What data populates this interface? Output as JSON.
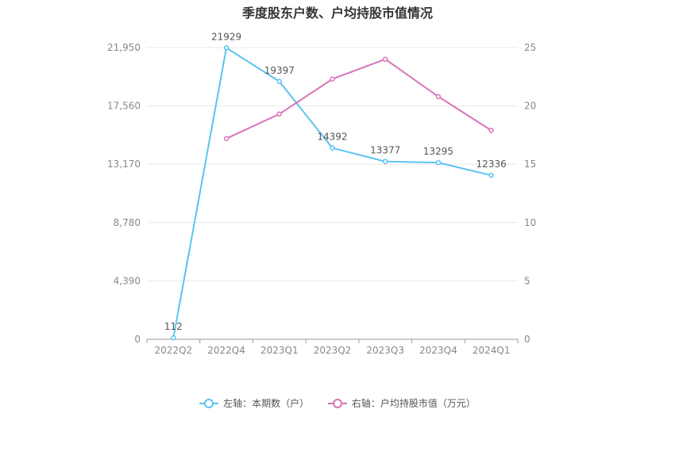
{
  "title": "季度股东户数、户均持股市值情况",
  "colors": {
    "holders": "#5bc3f0",
    "avg_value": "#d974b8",
    "grid": "#e8e8e8",
    "axis": "#999999"
  },
  "chart_data": {
    "type": "line",
    "categories": [
      "2022Q2",
      "2022Q4",
      "2023Q1",
      "2023Q2",
      "2023Q3",
      "2023Q4",
      "2024Q1"
    ],
    "y_left": {
      "min": 0,
      "max": 21950,
      "ticks": [
        0,
        4390,
        8780,
        13170,
        17560,
        21950
      ],
      "tick_labels": [
        "0",
        "4,390",
        "8,780",
        "13,170",
        "17,560",
        "21,950"
      ]
    },
    "y_right": {
      "min": 0,
      "max": 25,
      "ticks": [
        0,
        5,
        10,
        15,
        20,
        25
      ],
      "tick_labels": [
        "0",
        "5",
        "10",
        "15",
        "20",
        "25"
      ]
    },
    "series": [
      {
        "name": "左轴：本期数（户）",
        "axis": "left",
        "values": [
          112,
          21929,
          19397,
          14392,
          13377,
          13295,
          12336
        ],
        "labels": [
          "112",
          "21929",
          "19397",
          "14392",
          "13377",
          "13295",
          "12336"
        ]
      },
      {
        "name": "右轴：户均持股市值（万元）",
        "axis": "right",
        "values": [
          null,
          17.2,
          19.3,
          22.3,
          24.0,
          20.8,
          17.9
        ]
      }
    ],
    "grid": true,
    "legend_position": "bottom-center"
  }
}
